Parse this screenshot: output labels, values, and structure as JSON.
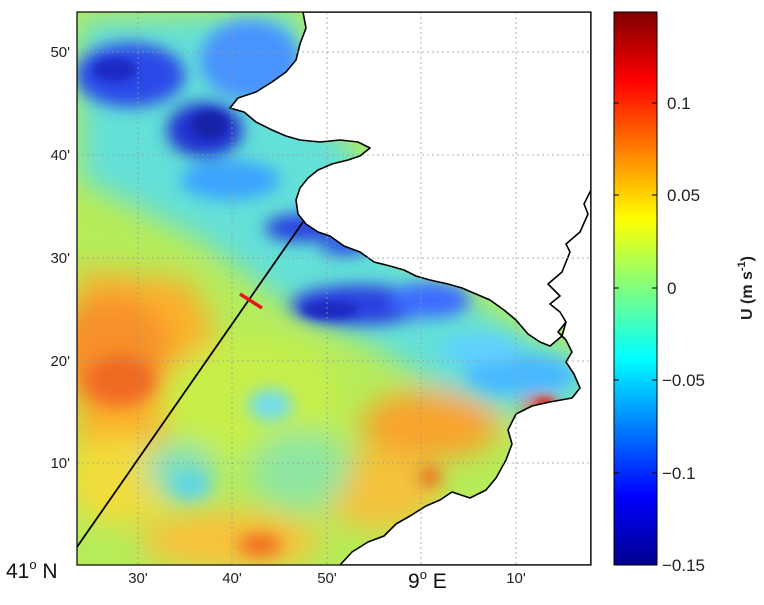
{
  "map": {
    "lat_ticks": [
      "50'",
      "40'",
      "30'",
      "20'",
      "10'"
    ],
    "lon_ticks": [
      "30'",
      "40'",
      "50'",
      "10'"
    ],
    "corner_lat": {
      "deg": "41",
      "sup": "o",
      "hemi": " N"
    },
    "corner_lon": {
      "deg": "9",
      "sup": "o",
      "hemi": " E"
    },
    "land_color": "#ffffff",
    "coastline_color": "#000000",
    "transect_color": "#000000",
    "marker_color": "#e8141c"
  },
  "colorbar": {
    "ticks": [
      "0.1",
      "0.05",
      "0",
      "−0.05",
      "−0.1",
      "−0.15"
    ],
    "tick_values": [
      0.1,
      0.05,
      0,
      -0.05,
      -0.1,
      -0.15
    ],
    "range": [
      -0.15,
      0.15
    ],
    "label_main": "U (m s",
    "label_sup": "-1",
    "label_end": ")",
    "colormap": "jet",
    "stops": [
      "#00008f",
      "#0000ff",
      "#00ffff",
      "#ffff00",
      "#ff0000",
      "#800000"
    ]
  }
}
